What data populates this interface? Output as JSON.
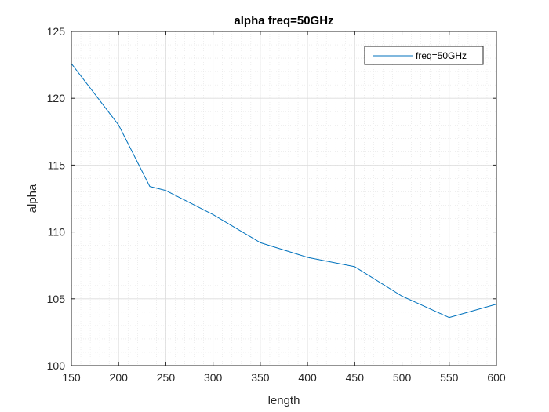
{
  "chart_data": {
    "type": "line",
    "title": "alpha freq=50GHz",
    "xlabel": "length",
    "ylabel": "alpha",
    "xlim": [
      150,
      600
    ],
    "ylim": [
      100,
      125
    ],
    "xticks": [
      150,
      200,
      250,
      300,
      350,
      400,
      450,
      500,
      550,
      600
    ],
    "yticks": [
      100,
      105,
      110,
      115,
      120,
      125
    ],
    "grid": true,
    "minor_grid": true,
    "legend_position": "top-right",
    "series": [
      {
        "name": "freq=50GHz",
        "color": "#0072BD",
        "x": [
          150,
          200,
          233,
          250,
          300,
          350,
          400,
          450,
          500,
          550,
          600
        ],
        "y": [
          122.6,
          118.0,
          113.4,
          113.1,
          111.3,
          109.2,
          108.1,
          107.4,
          105.2,
          103.6,
          104.6
        ]
      }
    ]
  }
}
